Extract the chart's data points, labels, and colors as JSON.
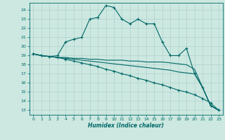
{
  "title": "",
  "xlabel": "Humidex (Indice chaleur)",
  "bg_color": "#cce8e0",
  "grid_color": "#aacccc",
  "line_color": "#006868",
  "ylim": [
    12.5,
    24.8
  ],
  "xlim": [
    -0.5,
    23.5
  ],
  "yticks": [
    13,
    14,
    15,
    16,
    17,
    18,
    19,
    20,
    21,
    22,
    23,
    24
  ],
  "xticks": [
    0,
    1,
    2,
    3,
    4,
    5,
    6,
    7,
    8,
    9,
    10,
    11,
    12,
    13,
    14,
    15,
    16,
    17,
    18,
    19,
    20,
    21,
    22,
    23
  ],
  "line1": [
    19.2,
    19.0,
    18.9,
    19.0,
    20.5,
    20.8,
    21.0,
    23.0,
    23.2,
    24.5,
    24.3,
    23.0,
    22.5,
    23.0,
    22.5,
    22.5,
    20.5,
    19.0,
    19.0,
    19.8,
    17.0,
    15.5,
    13.5,
    13.0
  ],
  "line2": [
    19.2,
    19.0,
    18.9,
    18.8,
    18.8,
    18.7,
    18.7,
    18.6,
    18.6,
    18.5,
    18.5,
    18.5,
    18.4,
    18.4,
    18.3,
    18.3,
    18.3,
    18.2,
    18.1,
    18.0,
    17.5,
    15.5,
    13.5,
    13.0
  ],
  "line3": [
    19.2,
    19.0,
    18.9,
    18.8,
    18.7,
    18.6,
    18.5,
    18.4,
    18.3,
    18.2,
    18.1,
    18.0,
    17.9,
    17.8,
    17.7,
    17.6,
    17.5,
    17.4,
    17.2,
    17.1,
    17.0,
    15.5,
    13.5,
    13.0
  ],
  "line4": [
    19.2,
    19.0,
    18.9,
    18.8,
    18.6,
    18.4,
    18.2,
    18.0,
    17.8,
    17.5,
    17.3,
    17.0,
    16.8,
    16.5,
    16.3,
    16.0,
    15.8,
    15.5,
    15.2,
    15.0,
    14.7,
    14.3,
    13.8,
    13.0
  ],
  "lw": 0.8,
  "marker_size": 2.5,
  "tick_fontsize": 4.5,
  "xlabel_fontsize": 5.5
}
